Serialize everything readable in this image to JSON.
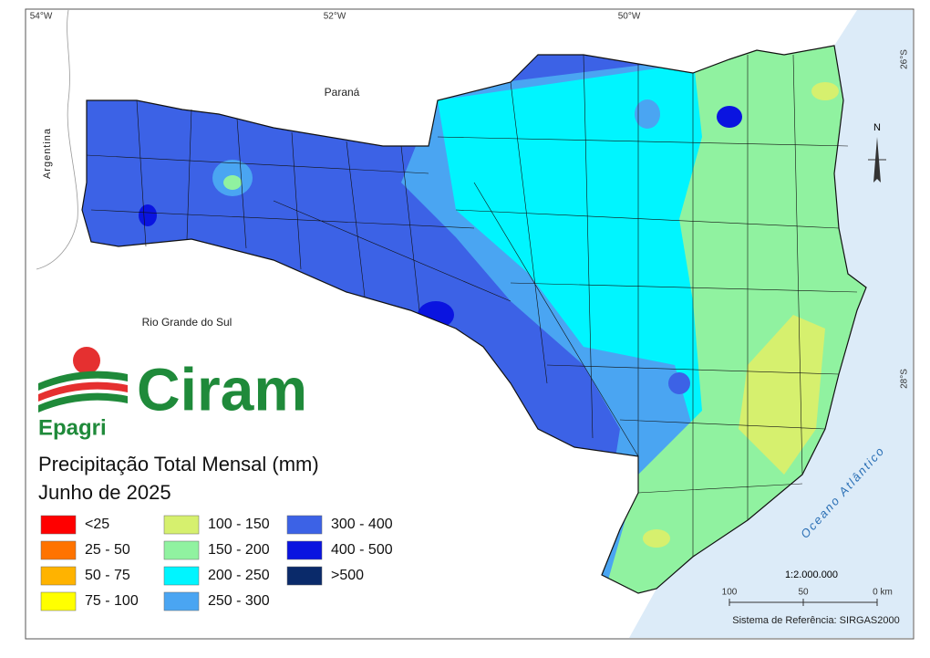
{
  "coordinates": {
    "longitudes": [
      "54°W",
      "52°W",
      "50°W"
    ],
    "latitudes": [
      "26°S",
      "28°S"
    ]
  },
  "places": {
    "parana": "Paraná",
    "argentina": "Argentina",
    "rio_grande": "Rio Grande do Sul",
    "ocean": "Oceano Atlântico"
  },
  "north": "N",
  "logo": {
    "brand": "Ciram",
    "org": "Epagri"
  },
  "title": "Precipitação Total Mensal (mm)",
  "subtitle": "Junho de 2025",
  "legend": [
    {
      "label": "<25",
      "color": "#ff0000"
    },
    {
      "label": "25 - 50",
      "color": "#ff7300"
    },
    {
      "label": "50 - 75",
      "color": "#ffb300"
    },
    {
      "label": "75 - 100",
      "color": "#ffff00"
    },
    {
      "label": "100 - 150",
      "color": "#d6f06e"
    },
    {
      "label": "150 - 200",
      "color": "#90f2a0"
    },
    {
      "label": "200 - 250",
      "color": "#00f5ff"
    },
    {
      "label": "250 - 300",
      "color": "#4aa5f2"
    },
    {
      "label": "300 - 400",
      "color": "#3c62e6"
    },
    {
      "label": "400 - 500",
      "color": "#0a14e0"
    },
    {
      "label": ">500",
      "color": "#0a2a6a"
    }
  ],
  "scale": {
    "ratio": "1:2.000.000",
    "ticks": [
      "100",
      "50",
      "0 km"
    ]
  },
  "reference": "Sistema de Referência: SIRGAS2000"
}
